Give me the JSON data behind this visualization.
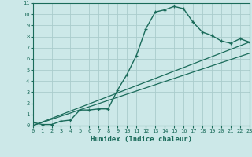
{
  "title": "",
  "xlabel": "Humidex (Indice chaleur)",
  "ylabel": "",
  "bg_color": "#cce8e8",
  "grid_color": "#aacccc",
  "line_color": "#1a6b5a",
  "xlim": [
    0,
    23
  ],
  "ylim": [
    0,
    11
  ],
  "xticks": [
    0,
    1,
    2,
    3,
    4,
    5,
    6,
    7,
    8,
    9,
    10,
    11,
    12,
    13,
    14,
    15,
    16,
    17,
    18,
    19,
    20,
    21,
    22,
    23
  ],
  "yticks": [
    0,
    1,
    2,
    3,
    4,
    5,
    6,
    7,
    8,
    9,
    10,
    11
  ],
  "curve1_x": [
    0,
    1,
    2,
    3,
    4,
    5,
    6,
    7,
    8,
    9,
    10,
    11,
    12,
    13,
    14,
    15,
    16,
    17,
    18,
    19,
    20,
    21,
    22,
    23
  ],
  "curve1_y": [
    0.3,
    0.1,
    0.1,
    0.4,
    0.5,
    1.4,
    1.4,
    1.5,
    1.5,
    3.2,
    4.6,
    6.3,
    8.7,
    10.2,
    10.4,
    10.7,
    10.5,
    9.3,
    8.4,
    8.1,
    7.6,
    7.4,
    7.8,
    7.5
  ],
  "line1_x": [
    0,
    23
  ],
  "line1_y": [
    0,
    7.5
  ],
  "line2_x": [
    0,
    23
  ],
  "line2_y": [
    0,
    6.5
  ]
}
